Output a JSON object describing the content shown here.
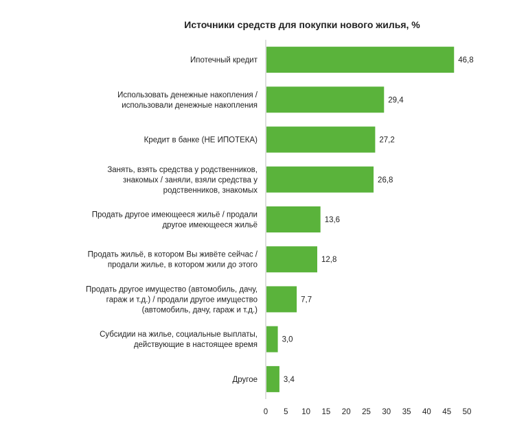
{
  "chart_data": {
    "type": "bar",
    "orientation": "horizontal",
    "title": "Источники средств для покупки нового жилья, %",
    "categories": [
      [
        "Ипотечный кредит"
      ],
      [
        "Использовать денежные накопления /",
        "использовали денежные накопления"
      ],
      [
        "Кредит в банке (НЕ ИПОТЕКА)"
      ],
      [
        "Занять, взять средства у родственников,",
        "знакомых / заняли, взяли средства у",
        "родственников, знакомых"
      ],
      [
        "Продать другое имеющееся жильё / продали",
        "другое имеющееся жильё"
      ],
      [
        "Продать жильё, в котором Вы живёте сейчас /",
        "продали жилье, в котором жили до этого"
      ],
      [
        "Продать другое имущество (автомобиль, дачу,",
        "гараж и т.д.) / продали другое имущество",
        "(автомобиль, дачу, гараж и т.д.)"
      ],
      [
        "Субсидии на жилье, социальные выплаты,",
        "действующие в настоящее время"
      ],
      [
        "Другое"
      ]
    ],
    "values": [
      46.8,
      29.4,
      27.2,
      26.8,
      13.6,
      12.8,
      7.7,
      3.0,
      3.4
    ],
    "value_labels": [
      "46,8",
      "29,4",
      "27,2",
      "26,8",
      "13,6",
      "12,8",
      "7,7",
      "3,0",
      "3,4"
    ],
    "xlim": [
      0,
      50
    ],
    "x_ticks": [
      0,
      5,
      10,
      15,
      20,
      25,
      30,
      35,
      40,
      45,
      50
    ],
    "grid": false,
    "bar_color": "#5ab33b"
  }
}
